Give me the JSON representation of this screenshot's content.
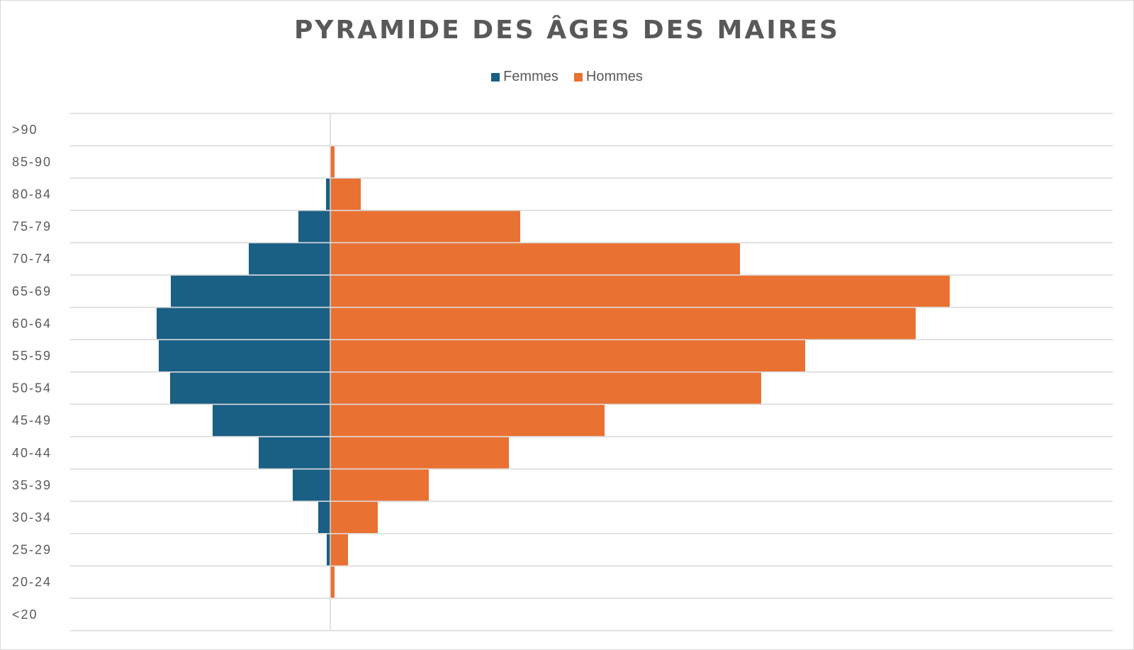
{
  "chart_data": {
    "type": "bar",
    "orientation": "horizontal-diverging",
    "title": "PYRAMIDE DES ÂGES DES MAIRES",
    "categories": [
      ">90",
      "85-90",
      "80-84",
      "75-79",
      "70-74",
      "65-69",
      "60-64",
      "55-59",
      "50-54",
      "45-49",
      "40-44",
      "35-39",
      "30-34",
      "25-29",
      "20-24",
      "<20"
    ],
    "series": [
      {
        "name": "Femmes",
        "color": "#1a5f84",
        "direction": "left",
        "values": [
          0,
          0,
          6,
          45,
          115,
          225,
          245,
          242,
          226,
          166,
          101,
          53,
          17,
          5,
          0,
          0
        ]
      },
      {
        "name": "Hommes",
        "color": "#e97132",
        "direction": "right",
        "values": [
          0,
          6,
          43,
          268,
          578,
          874,
          826,
          670,
          608,
          387,
          252,
          139,
          67,
          25,
          6,
          0
        ]
      }
    ],
    "xlabel": "",
    "ylabel": "",
    "legend_position": "top"
  }
}
